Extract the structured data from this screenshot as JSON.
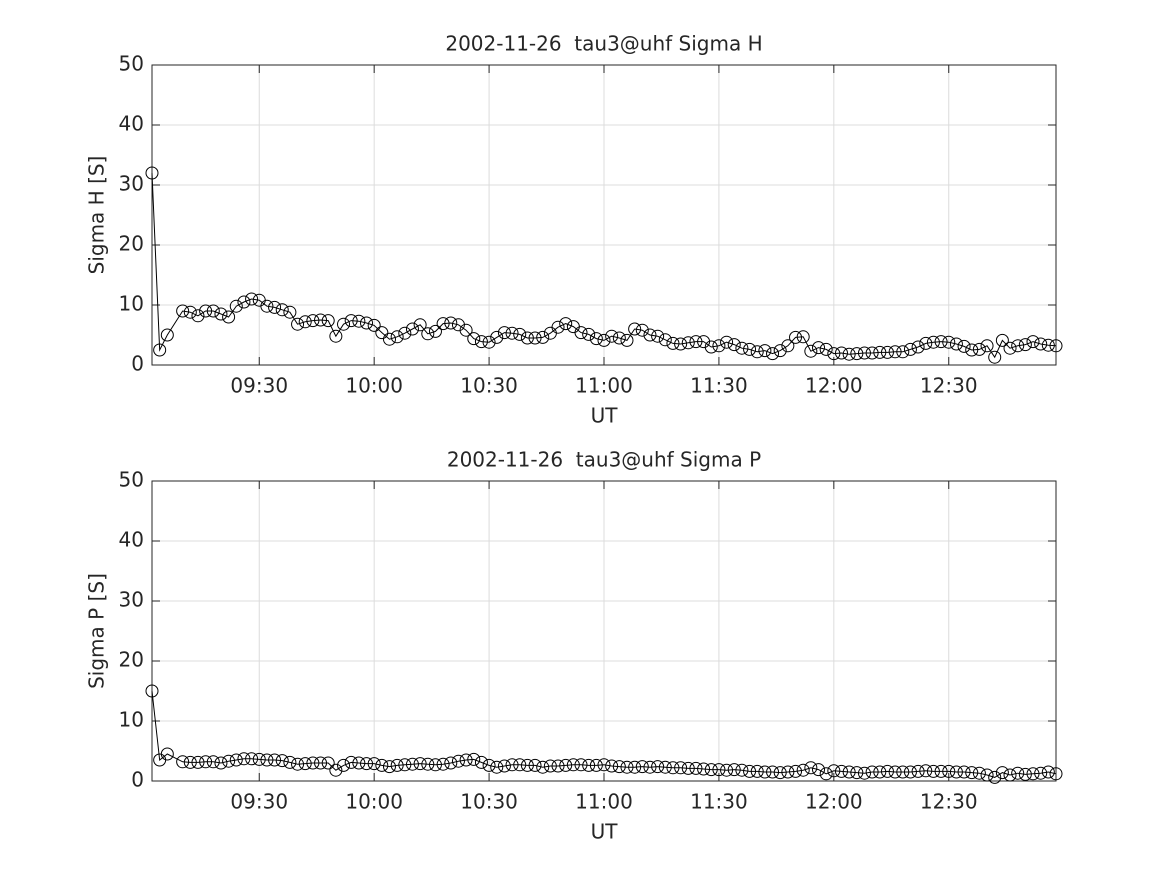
{
  "chart_data": [
    {
      "type": "line",
      "title": "2002-11-26  tau3@uhf Sigma H",
      "xlabel": "UT",
      "ylabel": "Sigma H [S]",
      "color": "#000000",
      "grid": true,
      "xlim": [
        "09:02",
        "12:58"
      ],
      "xticks": [
        "09:30",
        "10:00",
        "10:30",
        "11:00",
        "11:30",
        "12:00",
        "12:30"
      ],
      "ylim": [
        0,
        50
      ],
      "yticks": [
        0,
        10,
        20,
        30,
        40,
        50
      ],
      "x": [
        "09:02",
        "09:04",
        "09:06",
        "09:10",
        "09:12",
        "09:14",
        "09:16",
        "09:18",
        "09:20",
        "09:22",
        "09:24",
        "09:26",
        "09:28",
        "09:30",
        "09:32",
        "09:34",
        "09:36",
        "09:38",
        "09:40",
        "09:42",
        "09:44",
        "09:46",
        "09:48",
        "09:50",
        "09:52",
        "09:54",
        "09:56",
        "09:58",
        "10:00",
        "10:02",
        "10:04",
        "10:06",
        "10:08",
        "10:10",
        "10:12",
        "10:14",
        "10:16",
        "10:18",
        "10:20",
        "10:22",
        "10:24",
        "10:26",
        "10:28",
        "10:30",
        "10:32",
        "10:34",
        "10:36",
        "10:38",
        "10:40",
        "10:42",
        "10:44",
        "10:46",
        "10:48",
        "10:50",
        "10:52",
        "10:54",
        "10:56",
        "10:58",
        "11:00",
        "11:02",
        "11:04",
        "11:06",
        "11:08",
        "11:10",
        "11:12",
        "11:14",
        "11:16",
        "11:18",
        "11:20",
        "11:22",
        "11:24",
        "11:26",
        "11:28",
        "11:30",
        "11:32",
        "11:34",
        "11:36",
        "11:38",
        "11:40",
        "11:42",
        "11:44",
        "11:46",
        "11:48",
        "11:50",
        "11:52",
        "11:54",
        "11:56",
        "11:58",
        "12:00",
        "12:02",
        "12:04",
        "12:06",
        "12:08",
        "12:10",
        "12:12",
        "12:14",
        "12:16",
        "12:18",
        "12:20",
        "12:22",
        "12:24",
        "12:26",
        "12:28",
        "12:30",
        "12:32",
        "12:34",
        "12:36",
        "12:38",
        "12:40",
        "12:42",
        "12:44",
        "12:46",
        "12:48",
        "12:50",
        "12:52",
        "12:54",
        "12:56",
        "12:58"
      ],
      "values": [
        32,
        2.5,
        5,
        9,
        8.8,
        8.2,
        9,
        9,
        8.5,
        8,
        9.8,
        10.5,
        11,
        10.8,
        9.8,
        9.6,
        9.2,
        8.8,
        6.8,
        7.2,
        7.4,
        7.5,
        7.4,
        4.8,
        6.8,
        7.4,
        7.3,
        7,
        6.6,
        5.4,
        4.3,
        4.7,
        5.3,
        6,
        6.7,
        5.2,
        5.6,
        6.9,
        7,
        6.7,
        5.8,
        4.4,
        3.9,
        3.8,
        4.6,
        5.4,
        5.3,
        5.1,
        4.5,
        4.5,
        4.6,
        5.3,
        6.3,
        6.9,
        6.4,
        5.4,
        5.1,
        4.4,
        4.1,
        4.8,
        4.5,
        4.1,
        6,
        5.8,
        5,
        4.8,
        4.2,
        3.6,
        3.5,
        3.7,
        3.9,
        3.9,
        3,
        3.2,
        3.8,
        3.4,
        2.8,
        2.6,
        2.2,
        2.4,
        1.9,
        2.4,
        3.2,
        4.6,
        4.7,
        2.3,
        2.9,
        2.6,
        1.9,
        2,
        1.8,
        1.9,
        2,
        2,
        2.1,
        2.1,
        2.2,
        2.2,
        2.6,
        3,
        3.6,
        3.8,
        3.9,
        3.8,
        3.5,
        3.1,
        2.5,
        2.6,
        3.2,
        1.3,
        4.1,
        2.8,
        3.2,
        3.4,
        3.9,
        3.5,
        3.3,
        3.2
      ]
    },
    {
      "type": "line",
      "title": "2002-11-26  tau3@uhf Sigma P",
      "xlabel": "UT",
      "ylabel": "Sigma P [S]",
      "color": "#000000",
      "grid": true,
      "xlim": [
        "09:02",
        "12:58"
      ],
      "xticks": [
        "09:30",
        "10:00",
        "10:30",
        "11:00",
        "11:30",
        "12:00",
        "12:30"
      ],
      "ylim": [
        0,
        50
      ],
      "yticks": [
        0,
        10,
        20,
        30,
        40,
        50
      ],
      "x": [
        "09:02",
        "09:04",
        "09:06",
        "09:10",
        "09:12",
        "09:14",
        "09:16",
        "09:18",
        "09:20",
        "09:22",
        "09:24",
        "09:26",
        "09:28",
        "09:30",
        "09:32",
        "09:34",
        "09:36",
        "09:38",
        "09:40",
        "09:42",
        "09:44",
        "09:46",
        "09:48",
        "09:50",
        "09:52",
        "09:54",
        "09:56",
        "09:58",
        "10:00",
        "10:02",
        "10:04",
        "10:06",
        "10:08",
        "10:10",
        "10:12",
        "10:14",
        "10:16",
        "10:18",
        "10:20",
        "10:22",
        "10:24",
        "10:26",
        "10:28",
        "10:30",
        "10:32",
        "10:34",
        "10:36",
        "10:38",
        "10:40",
        "10:42",
        "10:44",
        "10:46",
        "10:48",
        "10:50",
        "10:52",
        "10:54",
        "10:56",
        "10:58",
        "11:00",
        "11:02",
        "11:04",
        "11:06",
        "11:08",
        "11:10",
        "11:12",
        "11:14",
        "11:16",
        "11:18",
        "11:20",
        "11:22",
        "11:24",
        "11:26",
        "11:28",
        "11:30",
        "11:32",
        "11:34",
        "11:36",
        "11:38",
        "11:40",
        "11:42",
        "11:44",
        "11:46",
        "11:48",
        "11:50",
        "11:52",
        "11:54",
        "11:56",
        "11:58",
        "12:00",
        "12:02",
        "12:04",
        "12:06",
        "12:08",
        "12:10",
        "12:12",
        "12:14",
        "12:16",
        "12:18",
        "12:20",
        "12:22",
        "12:24",
        "12:26",
        "12:28",
        "12:30",
        "12:32",
        "12:34",
        "12:36",
        "12:38",
        "12:40",
        "12:42",
        "12:44",
        "12:46",
        "12:48",
        "12:50",
        "12:52",
        "12:54",
        "12:56",
        "12:58"
      ],
      "values": [
        15,
        3.5,
        4.5,
        3.2,
        3.1,
        3.1,
        3.2,
        3.2,
        3.0,
        3.3,
        3.5,
        3.7,
        3.7,
        3.6,
        3.5,
        3.5,
        3.4,
        3.1,
        2.8,
        2.9,
        3.0,
        3.0,
        3.0,
        1.8,
        2.6,
        3.1,
        3.0,
        2.9,
        2.9,
        2.6,
        2.4,
        2.6,
        2.7,
        2.8,
        2.9,
        2.8,
        2.7,
        2.8,
        3.0,
        3.3,
        3.5,
        3.6,
        3.1,
        2.6,
        2.3,
        2.5,
        2.7,
        2.7,
        2.6,
        2.6,
        2.3,
        2.5,
        2.5,
        2.6,
        2.7,
        2.7,
        2.6,
        2.6,
        2.7,
        2.5,
        2.4,
        2.3,
        2.3,
        2.4,
        2.3,
        2.4,
        2.3,
        2.2,
        2.2,
        2.1,
        2.1,
        2.0,
        1.9,
        1.9,
        1.8,
        1.9,
        1.8,
        1.6,
        1.6,
        1.5,
        1.5,
        1.4,
        1.5,
        1.6,
        1.8,
        2.2,
        1.9,
        1.2,
        1.7,
        1.6,
        1.5,
        1.4,
        1.3,
        1.5,
        1.5,
        1.6,
        1.5,
        1.5,
        1.5,
        1.6,
        1.7,
        1.6,
        1.6,
        1.6,
        1.5,
        1.5,
        1.4,
        1.3,
        1.0,
        0.6,
        1.4,
        1.0,
        1.3,
        1.1,
        1.2,
        1.3,
        1.5,
        1.2
      ]
    }
  ]
}
